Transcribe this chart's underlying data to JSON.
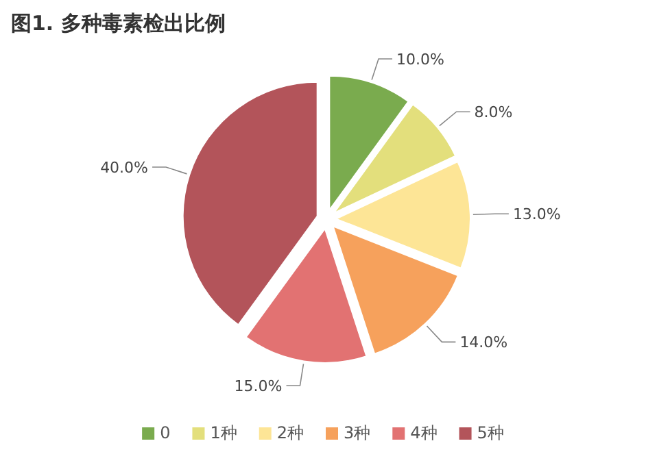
{
  "chart_data": {
    "type": "pie",
    "title": "图1. 多种毒素检出比例",
    "categories": [
      "0",
      "1种",
      "2种",
      "3种",
      "4种",
      "5种"
    ],
    "values": [
      10.0,
      8.0,
      13.0,
      14.0,
      15.0,
      40.0
    ],
    "value_labels": [
      "10.0%",
      "8.0%",
      "13.0%",
      "14.0%",
      "15.0%",
      "40.0%"
    ],
    "colors": [
      "#7aab4e",
      "#e3df7c",
      "#fde596",
      "#f6a15c",
      "#e27272",
      "#b3545a"
    ],
    "legend": "bottom"
  }
}
